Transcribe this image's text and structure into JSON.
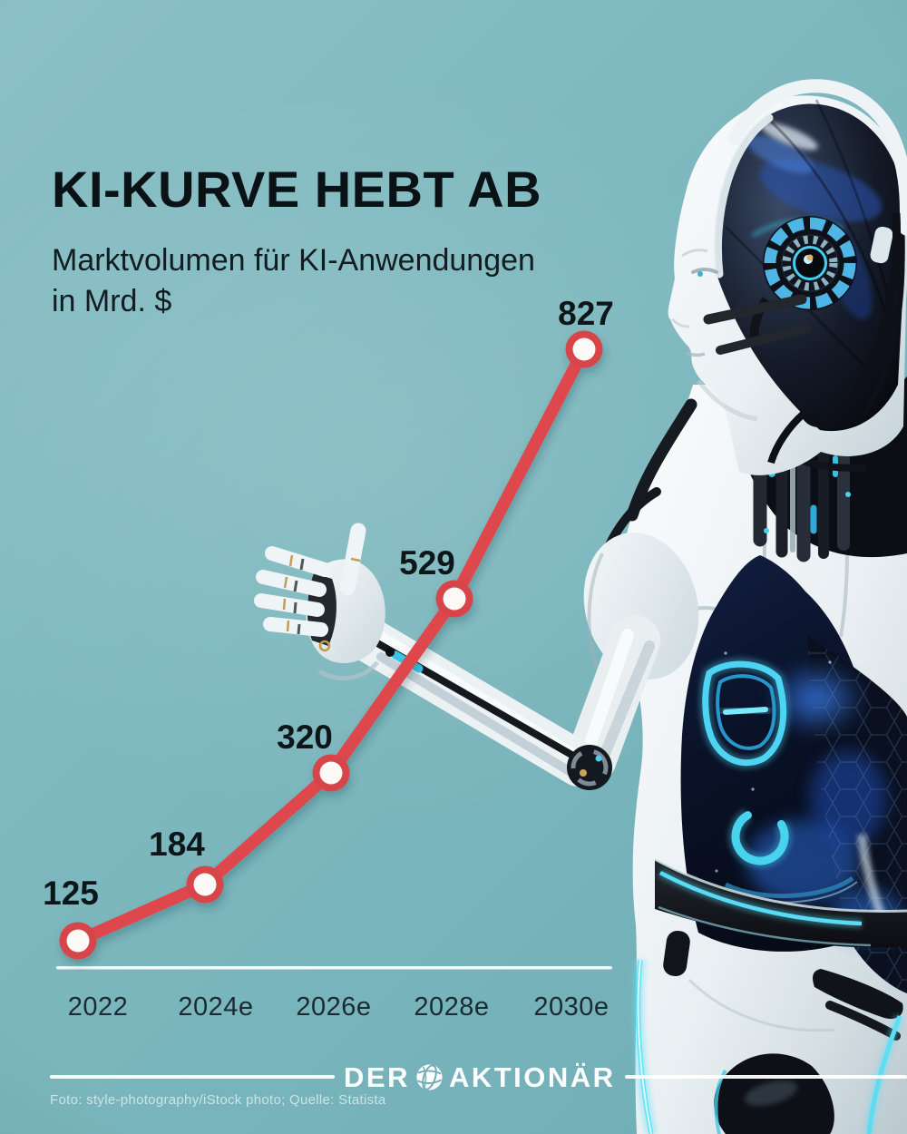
{
  "robot": {
    "description": "Weißer humanoider Roboter mit Headset, ausgestreckter Arm zeigt zur steigenden Kurve"
  },
  "header": {
    "title": "KI-KURVE HEBT AB",
    "subtitle_line1": "Marktvolumen für KI-Anwendungen",
    "subtitle_line2": "in Mrd. $"
  },
  "chart_data": {
    "type": "line",
    "title": "KI-KURVE HEBT AB",
    "subtitle": "Marktvolumen für KI-Anwendungen in Mrd. $",
    "categories": [
      "2022",
      "2024e",
      "2026e",
      "2028e",
      "2030e"
    ],
    "values": [
      125,
      184,
      320,
      529,
      827
    ],
    "unit": "Mrd. $",
    "ylim": [
      0,
      900
    ],
    "grid": false,
    "legend": "none",
    "line_color": "#de474c",
    "point_fill": "#fdf9f7",
    "point_ring": "#d8444a",
    "value_label_color": "#0d1619",
    "axis_label_color": "#1b2b31",
    "baseline_color": "#ffffff"
  },
  "branding": {
    "logo_part1": "DER",
    "logo_part2": "AKTIONÄR",
    "globe_icon": "globe-icon"
  },
  "footer": {
    "credit": "Foto: style-photography/iStock photo; Quelle: Statista"
  },
  "colors": {
    "background": "#7db8be",
    "robot_glow": "#55dcf6"
  }
}
